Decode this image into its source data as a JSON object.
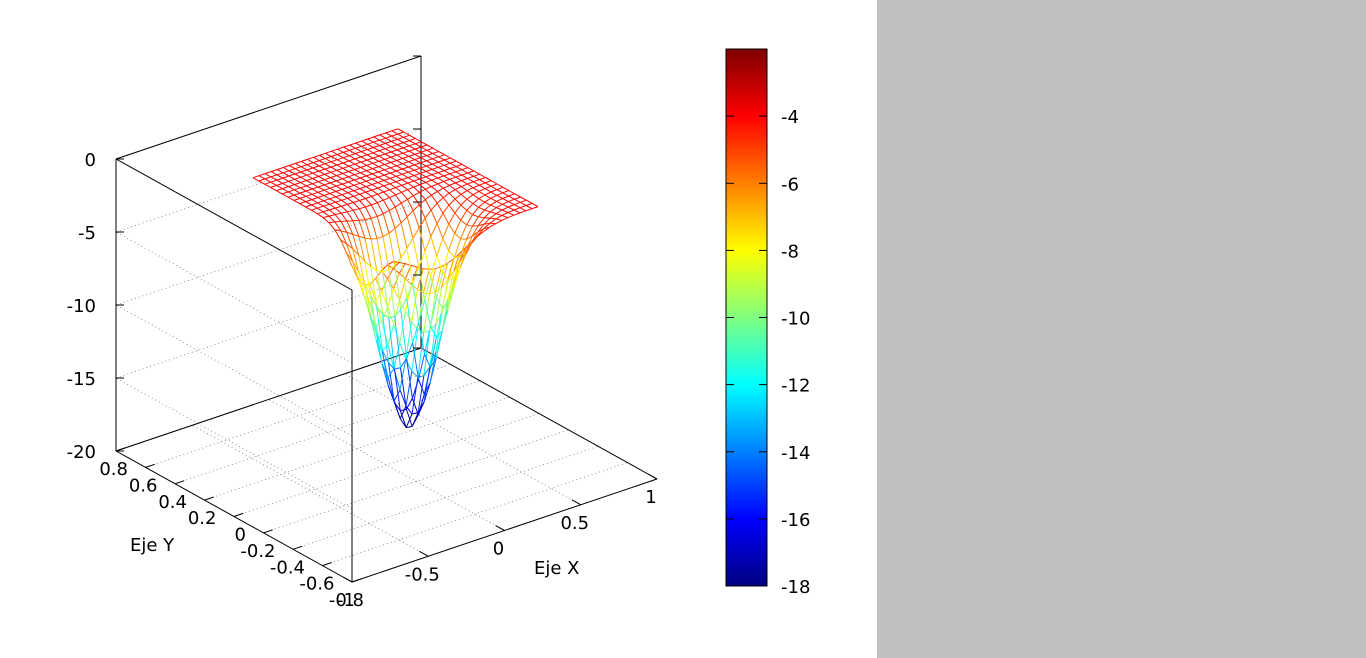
{
  "chart_data": {
    "type": "surface",
    "title": "",
    "xlabel": "Eje X",
    "ylabel": "Eje Y",
    "zlabel": "",
    "xlim": [
      -1,
      1
    ],
    "ylim": [
      -0.8,
      0.8
    ],
    "zlim": [
      -20,
      0
    ],
    "x_ticks": [
      "-1",
      "-0.5",
      "0",
      "0.5",
      "1"
    ],
    "y_ticks": [
      "-0.8",
      "-0.6",
      "-0.4",
      "-0.2",
      "0",
      "0.2",
      "0.4",
      "0.6",
      "0.8"
    ],
    "z_ticks": [
      "-20",
      "-15",
      "-10",
      "-5",
      "0"
    ],
    "colorbar": {
      "min": -18,
      "max": -2,
      "ticks": [
        "-4",
        "-6",
        "-8",
        "-10",
        "-12",
        "-14",
        "-16",
        "-18"
      ],
      "palette": [
        "#00007f",
        "#0000ff",
        "#007fff",
        "#00ffff",
        "#7fff7f",
        "#ffff00",
        "#ff7f00",
        "#ff0000",
        "#7f0000"
      ]
    },
    "grid": true,
    "surface": {
      "x_range": [
        -0.15,
        0.8
      ],
      "y_range": [
        -0.2,
        0.75
      ],
      "description": "mesh surface with a deep minimum near x=0.15, y=0 at z approx -18, rising to about -4 at the edges"
    }
  },
  "panel": {
    "background": "#c0c0c0"
  }
}
